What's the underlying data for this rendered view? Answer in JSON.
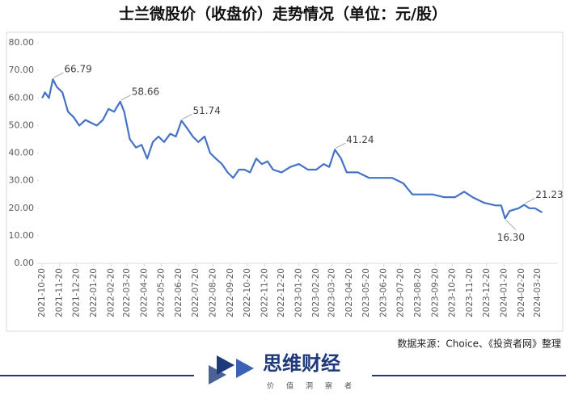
{
  "chart_data": {
    "type": "line",
    "title": "士兰微股价（收盘价）走势情况（单位：元/股）",
    "color": "#4472c4",
    "x": [
      "2021-10-20",
      "2021-10-25",
      "2021-11-01",
      "2021-11-08",
      "2021-11-15",
      "2021-11-25",
      "2021-12-05",
      "2021-12-15",
      "2021-12-25",
      "2022-01-05",
      "2022-01-15",
      "2022-01-25",
      "2022-02-05",
      "2022-02-15",
      "2022-02-25",
      "2022-03-08",
      "2022-03-15",
      "2022-03-25",
      "2022-04-05",
      "2022-04-15",
      "2022-04-25",
      "2022-05-05",
      "2022-05-15",
      "2022-05-25",
      "2022-06-05",
      "2022-06-15",
      "2022-06-25",
      "2022-07-05",
      "2022-07-15",
      "2022-07-25",
      "2022-08-05",
      "2022-08-15",
      "2022-08-25",
      "2022-09-05",
      "2022-09-15",
      "2022-09-25",
      "2022-10-05",
      "2022-10-15",
      "2022-10-25",
      "2022-11-05",
      "2022-11-15",
      "2022-11-25",
      "2022-12-05",
      "2022-12-20",
      "2023-01-05",
      "2023-01-20",
      "2023-02-05",
      "2023-02-20",
      "2023-03-05",
      "2023-03-15",
      "2023-03-25",
      "2023-04-05",
      "2023-04-15",
      "2023-05-05",
      "2023-05-25",
      "2023-06-15",
      "2023-07-05",
      "2023-07-25",
      "2023-08-10",
      "2023-08-25",
      "2023-09-15",
      "2023-10-05",
      "2023-10-25",
      "2023-11-10",
      "2023-11-25",
      "2023-12-15",
      "2024-01-05",
      "2024-01-15",
      "2024-01-22",
      "2024-01-30",
      "2024-02-15",
      "2024-02-25",
      "2024-03-05",
      "2024-03-15",
      "2024-03-28"
    ],
    "values": [
      60,
      62,
      60,
      66.79,
      64,
      62,
      55,
      53,
      50,
      52,
      51,
      50,
      52,
      56,
      55,
      58.66,
      55,
      45,
      42,
      43,
      38,
      44,
      46,
      44,
      47,
      46,
      51.74,
      49,
      46,
      44,
      46,
      40,
      38,
      36,
      33,
      31,
      34,
      34,
      33,
      38,
      36,
      37,
      34,
      33,
      35,
      36,
      34,
      34,
      36,
      35,
      41.24,
      38,
      33,
      33,
      31,
      31,
      31,
      29,
      25,
      25,
      25,
      24,
      24,
      26,
      24,
      22,
      21,
      21,
      16.3,
      19,
      20,
      21.23,
      20,
      20,
      18.5
    ],
    "annotations": [
      {
        "x": "2021-11-08",
        "value": 66.79,
        "label": "66.79"
      },
      {
        "x": "2022-03-08",
        "value": 58.66,
        "label": "58.66"
      },
      {
        "x": "2022-06-25",
        "value": 51.74,
        "label": "51.74"
      },
      {
        "x": "2023-03-25",
        "value": 41.24,
        "label": "41.24"
      },
      {
        "x": "2024-01-22",
        "value": 16.3,
        "label": "16.30"
      },
      {
        "x": "2024-02-25",
        "value": 21.23,
        "label": "21.23"
      }
    ],
    "xlim": [
      "2021-10-14",
      "2024-04-25"
    ],
    "xticks": [
      "2021-10-20",
      "2021-11-20",
      "2021-12-20",
      "2022-01-20",
      "2022-02-20",
      "2022-03-20",
      "2022-04-20",
      "2022-05-20",
      "2022-06-20",
      "2022-07-20",
      "2022-08-20",
      "2022-09-20",
      "2022-10-20",
      "2022-11-20",
      "2022-12-20",
      "2023-01-20",
      "2023-02-20",
      "2023-03-20",
      "2023-04-20",
      "2023-05-20",
      "2023-06-20",
      "2023-07-20",
      "2023-08-20",
      "2023-09-20",
      "2023-10-20",
      "2023-11-20",
      "2023-12-20",
      "2024-01-20",
      "2024-02-20",
      "2024-03-20"
    ],
    "ylim": [
      0,
      80
    ],
    "yticks": [
      {
        "value": 0,
        "label": "0.00"
      },
      {
        "value": 10,
        "label": "10.00"
      },
      {
        "value": 20,
        "label": "20.00"
      },
      {
        "value": 30,
        "label": "30.00"
      },
      {
        "value": 40,
        "label": "40.00"
      },
      {
        "value": 50,
        "label": "50.00"
      },
      {
        "value": 60,
        "label": "60.00"
      },
      {
        "value": 70,
        "label": "70.00"
      },
      {
        "value": 80,
        "label": "80.00"
      }
    ],
    "source": "数据来源：Choice、《投资者网》整理"
  },
  "footer": {
    "brand": "思维财经",
    "tagline": [
      "价",
      "值",
      "洞",
      "察",
      "者"
    ]
  }
}
